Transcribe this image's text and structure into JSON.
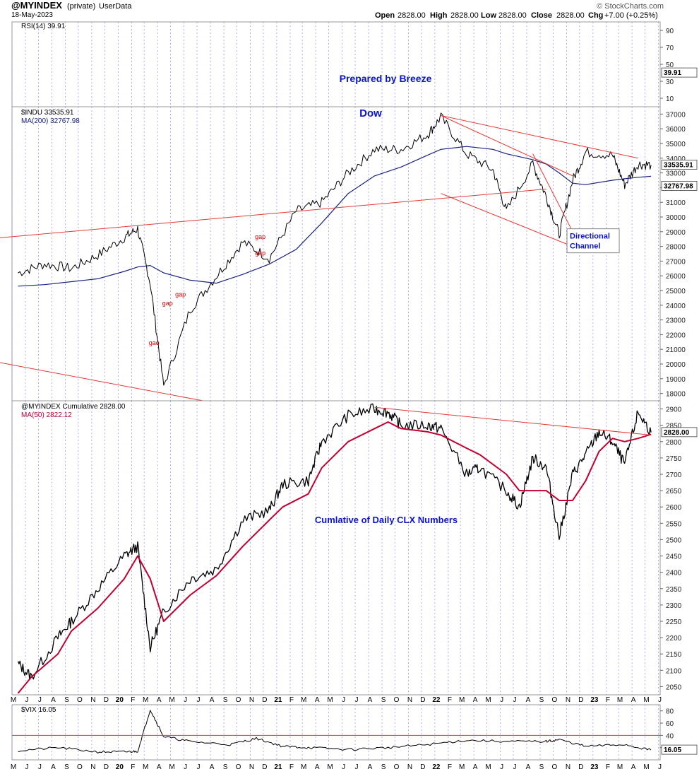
{
  "header": {
    "symbol": "@MYINDEX",
    "privacy": "(private)",
    "source": "UserData",
    "date": "18-May-2023",
    "watermark": "© StockCharts.com",
    "quote": {
      "open_label": "Open",
      "open": "2828.00",
      "high_label": "High",
      "high": "2828.00",
      "low_label": "Low",
      "low": "2828.00",
      "close_label": "Close",
      "close": "2828.00",
      "chg_label": "Chg",
      "chg": "+7.00 (+0.25%)"
    }
  },
  "colors": {
    "price": "#000000",
    "ma": "#1a237e",
    "ma50": "#c2002f",
    "trendline": "#e53935",
    "annotation": "#0a14c8",
    "grid": "#8c8cf0",
    "gap_label": "#d00000"
  },
  "x_axis": {
    "labels": [
      "M",
      "J",
      "J",
      "A",
      "S",
      "O",
      "N",
      "D",
      "20",
      "F",
      "M",
      "A",
      "M",
      "J",
      "J",
      "A",
      "S",
      "O",
      "N",
      "D",
      "21",
      "F",
      "M",
      "A",
      "M",
      "J",
      "J",
      "A",
      "S",
      "O",
      "N",
      "D",
      "22",
      "F",
      "M",
      "A",
      "M",
      "J",
      "J",
      "A",
      "S",
      "O",
      "N",
      "D",
      "23",
      "F",
      "M",
      "A",
      "M",
      "J"
    ],
    "bold_labels": [
      "20",
      "21",
      "22",
      "23"
    ]
  },
  "chart_data": [
    {
      "type": "line",
      "name": "RSI(14)",
      "legend": "RSI(14) 39.91",
      "last_value": 39.91,
      "ylim": [
        0,
        100
      ],
      "y_ticks": [
        10,
        30,
        50,
        70,
        90
      ],
      "annotations": [
        "Prepared by Breeze"
      ]
    },
    {
      "type": "line",
      "legend": "$INDU 33535.91",
      "ylim": [
        17500,
        37500
      ],
      "y_ticks": [
        18000,
        19000,
        20000,
        21000,
        22000,
        23000,
        24000,
        25000,
        26000,
        27000,
        28000,
        29000,
        30000,
        31000,
        32000,
        33000,
        34000,
        35000,
        36000,
        37000
      ],
      "x": [
        "2019-05",
        "2019-07",
        "2019-09",
        "2019-11",
        "2020-01",
        "2020-02",
        "2020-03",
        "2020-04",
        "2020-06",
        "2020-08",
        "2020-10",
        "2020-12",
        "2021-02",
        "2021-04",
        "2021-06",
        "2021-08",
        "2021-10",
        "2021-12",
        "2022-01",
        "2022-03",
        "2022-05",
        "2022-06",
        "2022-08",
        "2022-09",
        "2022-10",
        "2022-11",
        "2022-12",
        "2023-02",
        "2023-03",
        "2023-04",
        "2023-05"
      ],
      "series": [
        {
          "name": "$INDU",
          "last": 33535.91,
          "values": [
            26200,
            26800,
            26500,
            27400,
            28600,
            29200,
            25500,
            18500,
            23700,
            26000,
            28300,
            27200,
            30400,
            31000,
            33000,
            34600,
            34600,
            35600,
            36800,
            34300,
            33200,
            30400,
            33600,
            31400,
            28800,
            32500,
            34400,
            34200,
            32200,
            33600,
            33536
          ]
        },
        {
          "name": "MA(200)",
          "legend": "MA(200) 32767.98",
          "last": 32767.98,
          "values": [
            25300,
            25400,
            25600,
            25800,
            26300,
            26600,
            26700,
            26200,
            25700,
            25500,
            26100,
            26800,
            27800,
            29600,
            31600,
            32800,
            33400,
            34200,
            34600,
            34800,
            34600,
            34300,
            33900,
            33600,
            33000,
            32300,
            32200,
            32500,
            32600,
            32700,
            32768
          ]
        }
      ],
      "annotations": [
        "Dow",
        "Directional Channel",
        "gap",
        "gap",
        "gap",
        "gap",
        "gao"
      ]
    },
    {
      "type": "line",
      "legend": "@MYINDEX Cumulative 2828.00",
      "ylim": [
        2025,
        2925
      ],
      "y_ticks": [
        2050,
        2100,
        2150,
        2200,
        2250,
        2300,
        2350,
        2400,
        2450,
        2500,
        2550,
        2600,
        2650,
        2700,
        2750,
        2800,
        2850,
        2900
      ],
      "x": [
        "2019-05",
        "2019-06",
        "2019-08",
        "2019-09",
        "2019-11",
        "2020-01",
        "2020-02",
        "2020-03",
        "2020-04",
        "2020-06",
        "2020-08",
        "2020-10",
        "2020-12",
        "2021-01",
        "2021-03",
        "2021-04",
        "2021-06",
        "2021-08",
        "2021-09",
        "2021-10",
        "2021-12",
        "2022-01",
        "2022-03",
        "2022-04",
        "2022-06",
        "2022-07",
        "2022-08",
        "2022-09",
        "2022-10",
        "2022-11",
        "2022-12",
        "2023-01",
        "2023-02",
        "2023-03",
        "2023-04",
        "2023-05"
      ],
      "series": [
        {
          "name": "@MYINDEX Cumulative",
          "last": 2828.0,
          "values": [
            2120,
            2080,
            2200,
            2250,
            2350,
            2450,
            2480,
            2170,
            2280,
            2380,
            2410,
            2560,
            2590,
            2670,
            2680,
            2800,
            2880,
            2900,
            2890,
            2850,
            2850,
            2840,
            2700,
            2720,
            2650,
            2600,
            2750,
            2720,
            2510,
            2700,
            2760,
            2830,
            2800,
            2730,
            2890,
            2828
          ]
        },
        {
          "name": "MA(50)",
          "legend": "MA(50) 2822.12",
          "last": 2822.12,
          "values": [
            2030,
            2080,
            2150,
            2220,
            2290,
            2380,
            2450,
            2380,
            2250,
            2330,
            2390,
            2480,
            2560,
            2600,
            2640,
            2720,
            2800,
            2840,
            2860,
            2840,
            2830,
            2820,
            2780,
            2760,
            2700,
            2650,
            2650,
            2650,
            2620,
            2620,
            2680,
            2770,
            2810,
            2800,
            2810,
            2822
          ]
        }
      ],
      "annotations": [
        "Cumlative of Daily CLX Numbers"
      ]
    },
    {
      "type": "line",
      "name": "$VIX",
      "legend": "$VIX 16.05",
      "last": 16.05,
      "ylim": [
        0,
        90
      ],
      "y_ticks": [
        20,
        40,
        60,
        80
      ],
      "x": [
        "2019-05",
        "2019-08",
        "2019-11",
        "2020-01",
        "2020-02",
        "2020-03",
        "2020-04",
        "2020-06",
        "2020-09",
        "2020-11",
        "2021-01",
        "2021-03",
        "2021-06",
        "2021-09",
        "2021-12",
        "2022-03",
        "2022-06",
        "2022-09",
        "2022-10",
        "2022-12",
        "2023-03",
        "2023-05"
      ],
      "values": [
        15,
        20,
        13,
        13,
        14,
        82,
        38,
        30,
        25,
        35,
        22,
        20,
        17,
        20,
        25,
        32,
        30,
        30,
        33,
        22,
        25,
        16
      ],
      "reference_line": 40
    }
  ]
}
